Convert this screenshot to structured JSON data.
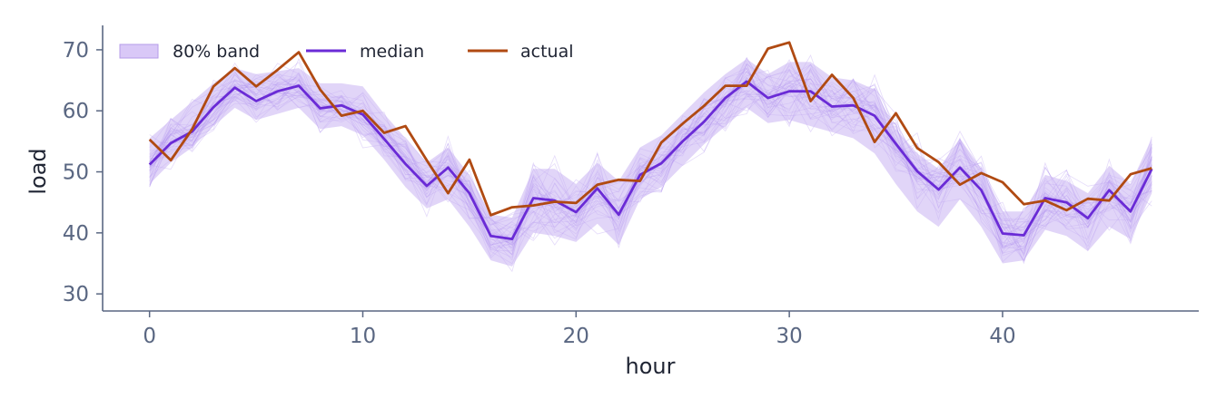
{
  "chart_data": {
    "type": "line",
    "xlabel": "hour",
    "ylabel": "load",
    "xlim": [
      -2.2,
      49.2
    ],
    "ylim": [
      27.2,
      74.0
    ],
    "xticks": [
      0,
      10,
      20,
      30,
      40
    ],
    "yticks": [
      30,
      40,
      50,
      60,
      70
    ],
    "x": [
      0,
      1,
      2,
      3,
      4,
      5,
      6,
      7,
      8,
      9,
      10,
      11,
      12,
      13,
      14,
      15,
      16,
      17,
      18,
      19,
      20,
      21,
      22,
      23,
      24,
      25,
      26,
      27,
      28,
      29,
      30,
      31,
      32,
      33,
      34,
      35,
      36,
      37,
      38,
      39,
      40,
      41,
      42,
      43,
      44,
      45,
      46,
      47
    ],
    "band": {
      "name": "80% band",
      "lower": [
        48.0,
        51.5,
        54.0,
        57.5,
        60.5,
        58.5,
        59.5,
        60.5,
        57.0,
        57.5,
        56.0,
        52.0,
        47.5,
        44.0,
        45.5,
        41.0,
        35.5,
        34.5,
        40.0,
        39.5,
        38.5,
        41.5,
        38.0,
        45.5,
        47.5,
        51.0,
        54.5,
        57.5,
        60.5,
        58.0,
        58.5,
        57.5,
        56.5,
        55.5,
        53.0,
        48.0,
        43.5,
        41.0,
        45.5,
        41.0,
        35.0,
        35.5,
        40.5,
        39.5,
        37.0,
        41.0,
        39.0,
        46.5
      ],
      "upper": [
        55.5,
        58.5,
        61.5,
        64.5,
        67.0,
        66.0,
        66.5,
        67.0,
        64.5,
        64.5,
        64.0,
        59.5,
        55.5,
        51.5,
        54.0,
        49.5,
        43.0,
        42.5,
        50.5,
        50.5,
        48.0,
        51.5,
        48.5,
        54.0,
        56.0,
        59.5,
        63.0,
        66.0,
        68.5,
        66.0,
        68.0,
        68.0,
        65.5,
        65.0,
        63.5,
        57.0,
        53.0,
        50.5,
        55.5,
        50.5,
        43.5,
        43.5,
        49.5,
        48.5,
        46.5,
        51.0,
        48.0,
        55.5
      ]
    },
    "series": [
      {
        "name": "median",
        "color": "#6a2bd6",
        "values": [
          51.2,
          54.7,
          56.6,
          60.6,
          63.8,
          61.6,
          63.2,
          64.1,
          60.4,
          60.9,
          59.4,
          55.4,
          51.3,
          47.7,
          50.7,
          46.5,
          39.5,
          39.0,
          45.7,
          45.3,
          43.4,
          47.3,
          43.0,
          49.5,
          51.4,
          55.0,
          58.2,
          62.1,
          64.8,
          62.1,
          63.2,
          63.2,
          60.7,
          60.9,
          59.2,
          54.6,
          50.1,
          47.1,
          50.7,
          47.0,
          39.9,
          39.6,
          45.7,
          45.0,
          42.4,
          47.0,
          43.5,
          50.5
        ]
      },
      {
        "name": "actual",
        "color": "#b04a12",
        "values": [
          55.3,
          51.9,
          57.0,
          64.0,
          67.0,
          64.0,
          66.7,
          69.6,
          63.5,
          59.2,
          60.0,
          56.4,
          57.5,
          51.9,
          46.5,
          52.0,
          42.9,
          44.2,
          44.5,
          45.1,
          44.9,
          47.9,
          48.7,
          48.5,
          54.8,
          57.9,
          60.8,
          64.1,
          64.1,
          70.2,
          71.2,
          61.6,
          65.9,
          62.1,
          54.9,
          59.6,
          53.9,
          51.6,
          47.9,
          49.8,
          48.3,
          44.7,
          45.3,
          43.7,
          45.6,
          45.3,
          49.6,
          50.6
        ]
      }
    ],
    "ensemble_draws": 40,
    "ensemble_color": "#8a5ce6",
    "band_color": "#c9b2f3",
    "legend_placement": "top-left",
    "grid": false
  }
}
